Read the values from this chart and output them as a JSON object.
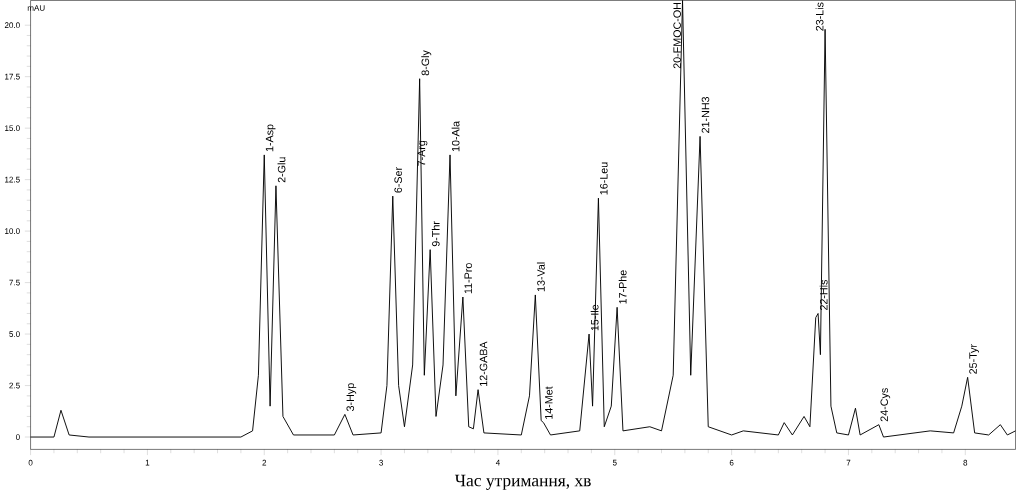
{
  "chart_data": {
    "type": "line",
    "xlabel": "Час утримання, хв",
    "ylabel": "mAU",
    "x": [
      0,
      0.2,
      0.26,
      0.33,
      0.5,
      1.8,
      1.9,
      1.95,
      2.0,
      2.05,
      2.1,
      2.16,
      2.25,
      2.6,
      2.69,
      2.76,
      3.0,
      3.05,
      3.1,
      3.15,
      3.2,
      3.27,
      3.33,
      3.37,
      3.42,
      3.47,
      3.53,
      3.59,
      3.64,
      3.7,
      3.75,
      3.79,
      3.83,
      3.88,
      4.2,
      4.27,
      4.32,
      4.37,
      4.39,
      4.45,
      4.7,
      4.78,
      4.81,
      4.86,
      4.91,
      4.97,
      5.02,
      5.07,
      5.3,
      5.4,
      5.5,
      5.58,
      5.65,
      5.73,
      5.8,
      6.0,
      6.1,
      6.4,
      6.45,
      6.52,
      6.62,
      6.67,
      6.72,
      6.74,
      6.76,
      6.8,
      6.85,
      6.9,
      7.0,
      7.06,
      7.1,
      7.26,
      7.3,
      7.7,
      7.9,
      7.97,
      8.02,
      8.08,
      8.2,
      8.3,
      8.36,
      8.43
    ],
    "series": [
      {
        "color": "#000000",
        "values": [
          0,
          0,
          1.3,
          0.1,
          0,
          0,
          0.3,
          3,
          13.7,
          1.5,
          12.2,
          1.0,
          0.1,
          0.1,
          1.1,
          0.1,
          0.2,
          2.5,
          11.7,
          2.5,
          0.5,
          3.5,
          17.4,
          3,
          9.1,
          1.0,
          3.5,
          13.7,
          2.0,
          6.8,
          0.5,
          0.4,
          2.3,
          0.2,
          0.1,
          2,
          6.9,
          0.8,
          0.7,
          0.1,
          0.3,
          5.0,
          1.5,
          11.6,
          0.5,
          1.5,
          6.3,
          0.3,
          0.5,
          0.3,
          3,
          21.2,
          3,
          14.6,
          0.5,
          0.1,
          0.3,
          0.1,
          0.7,
          0.1,
          1.0,
          0.5,
          5.8,
          6.0,
          4,
          19.8,
          1.5,
          0.2,
          0.1,
          1.4,
          0.1,
          0.6,
          0,
          0.3,
          0.2,
          1.5,
          2.9,
          0.2,
          0.1,
          0.6,
          0.1,
          0.3
        ]
      }
    ],
    "xlim": [
      0,
      8.43
    ],
    "ylim": [
      -0.6,
      21.2
    ],
    "xticks": [
      0,
      1,
      2,
      3,
      4,
      5,
      6,
      7,
      8
    ],
    "yticks": [
      0,
      2.5,
      {
        "value": 5,
        "label": "5.0"
      },
      7.5,
      {
        "value": 10,
        "label": "10.0"
      },
      12.5,
      {
        "value": 15,
        "label": "15.0"
      },
      17.5,
      {
        "value": 20,
        "label": "20.0"
      }
    ],
    "marker": "none",
    "line_style": "solid",
    "annotations": [
      {
        "text": "1-Asp",
        "x": 2.0,
        "y": 13.7
      },
      {
        "text": "2-Glu",
        "x": 2.1,
        "y": 12.2
      },
      {
        "text": "3-Hyp",
        "x": 2.69,
        "y": 1.1
      },
      {
        "text": "6-Ser",
        "x": 3.1,
        "y": 11.7
      },
      {
        "text": "7-Arg",
        "x": 3.3,
        "y": 13.0
      },
      {
        "text": "8-Gly",
        "x": 3.33,
        "y": 17.4
      },
      {
        "text": "9-Thr",
        "x": 3.42,
        "y": 9.1
      },
      {
        "text": "10-Ala",
        "x": 3.59,
        "y": 13.7
      },
      {
        "text": "11-Pro",
        "x": 3.7,
        "y": 6.8
      },
      {
        "text": "12-GABA",
        "x": 3.83,
        "y": 2.3
      },
      {
        "text": "13-Val",
        "x": 4.32,
        "y": 6.9
      },
      {
        "text": "14-Met",
        "x": 4.39,
        "y": 0.7
      },
      {
        "text": "15-Ile",
        "x": 4.78,
        "y": 5.0
      },
      {
        "text": "16-Leu",
        "x": 4.86,
        "y": 11.6
      },
      {
        "text": "17-Phe",
        "x": 5.02,
        "y": 6.3
      },
      {
        "text": "20-FMOC-OH",
        "x": 5.58,
        "y": 21.2
      },
      {
        "text": "21-NH3",
        "x": 5.73,
        "y": 14.6
      },
      {
        "text": "22-His",
        "x": 6.74,
        "y": 6.0
      },
      {
        "text": "23-Lis",
        "x": 6.8,
        "y": 19.8
      },
      {
        "text": "24-Cys",
        "x": 7.26,
        "y": 0.6
      },
      {
        "text": "25-Tyr",
        "x": 8.02,
        "y": 2.9
      }
    ]
  }
}
